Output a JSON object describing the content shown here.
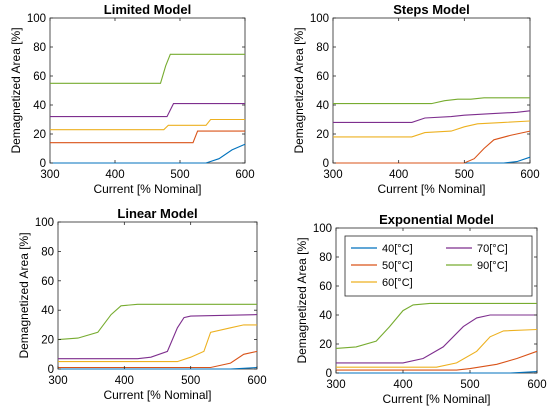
{
  "figure": {
    "colors": [
      "#0072BD",
      "#D95319",
      "#EDB120",
      "#7E2F8E",
      "#77AC30"
    ]
  },
  "chart_data": [
    {
      "type": "line",
      "title": "Limited Model",
      "xlabel": "Current [% Nominal]",
      "ylabel": "Demagnetized Area [%]",
      "xlim": [
        300,
        600
      ],
      "ylim": [
        0,
        100
      ],
      "xticks": [
        "300",
        "400",
        "500",
        "600"
      ],
      "yticks": [
        "0",
        "20",
        "40",
        "60",
        "80",
        "100"
      ],
      "grid": false,
      "series": [
        {
          "points": [
            [
              300,
              0
            ],
            [
              540,
              0
            ],
            [
              560,
              3
            ],
            [
              580,
              9
            ],
            [
              600,
              13
            ]
          ]
        },
        {
          "points": [
            [
              300,
              14
            ],
            [
              520,
              14
            ],
            [
              527,
              22
            ],
            [
              600,
              22
            ]
          ]
        },
        {
          "points": [
            [
              300,
              23
            ],
            [
              475,
              23
            ],
            [
              482,
              26
            ],
            [
              540,
              26
            ],
            [
              547,
              30
            ],
            [
              600,
              30
            ]
          ]
        },
        {
          "points": [
            [
              300,
              32
            ],
            [
              480,
              32
            ],
            [
              490,
              41
            ],
            [
              600,
              41
            ]
          ]
        },
        {
          "points": [
            [
              300,
              55
            ],
            [
              470,
              55
            ],
            [
              478,
              67
            ],
            [
              485,
              75
            ],
            [
              600,
              75
            ]
          ]
        }
      ]
    },
    {
      "type": "line",
      "title": "Steps Model",
      "xlabel": "Current [% Nominal]",
      "ylabel": "Demagnetized Area [%]",
      "xlim": [
        300,
        600
      ],
      "ylim": [
        0,
        100
      ],
      "xticks": [
        "300",
        "400",
        "500",
        "600"
      ],
      "yticks": [
        "0",
        "20",
        "40",
        "60",
        "80",
        "100"
      ],
      "grid": false,
      "series": [
        {
          "points": [
            [
              300,
              0
            ],
            [
              560,
              0
            ],
            [
              580,
              1
            ],
            [
              600,
              4
            ]
          ]
        },
        {
          "points": [
            [
              300,
              0
            ],
            [
              500,
              0
            ],
            [
              515,
              3
            ],
            [
              530,
              10
            ],
            [
              545,
              16
            ],
            [
              570,
              19
            ],
            [
              600,
              22
            ]
          ]
        },
        {
          "points": [
            [
              300,
              18
            ],
            [
              420,
              18
            ],
            [
              440,
              21
            ],
            [
              480,
              22
            ],
            [
              500,
              25
            ],
            [
              520,
              27
            ],
            [
              560,
              28
            ],
            [
              600,
              29
            ]
          ]
        },
        {
          "points": [
            [
              300,
              28
            ],
            [
              420,
              28
            ],
            [
              440,
              31
            ],
            [
              480,
              32
            ],
            [
              500,
              33
            ],
            [
              540,
              34
            ],
            [
              580,
              35
            ],
            [
              600,
              36
            ]
          ]
        },
        {
          "points": [
            [
              300,
              41
            ],
            [
              450,
              41
            ],
            [
              470,
              43
            ],
            [
              490,
              44
            ],
            [
              510,
              44
            ],
            [
              530,
              45
            ],
            [
              600,
              45
            ]
          ]
        }
      ]
    },
    {
      "type": "line",
      "title": "Linear Model",
      "xlabel": "Current [% Nominal]",
      "ylabel": "Demagnetized Area [%]",
      "xlim": [
        300,
        600
      ],
      "ylim": [
        0,
        100
      ],
      "xticks": [
        "300",
        "400",
        "500",
        "600"
      ],
      "yticks": [
        "0",
        "20",
        "40",
        "60",
        "80",
        "100"
      ],
      "grid": false,
      "series": [
        {
          "points": [
            [
              300,
              0
            ],
            [
              560,
              0
            ],
            [
              580,
              0.5
            ],
            [
              600,
              1
            ]
          ]
        },
        {
          "points": [
            [
              300,
              1
            ],
            [
              530,
              1
            ],
            [
              560,
              4
            ],
            [
              580,
              10
            ],
            [
              600,
              12
            ]
          ]
        },
        {
          "points": [
            [
              300,
              5
            ],
            [
              480,
              5
            ],
            [
              500,
              8
            ],
            [
              520,
              12
            ],
            [
              530,
              25
            ],
            [
              560,
              28
            ],
            [
              580,
              30
            ],
            [
              600,
              30
            ]
          ]
        },
        {
          "points": [
            [
              300,
              7
            ],
            [
              420,
              7
            ],
            [
              440,
              8
            ],
            [
              465,
              12
            ],
            [
              480,
              28
            ],
            [
              490,
              35
            ],
            [
              500,
              36
            ],
            [
              600,
              37
            ]
          ]
        },
        {
          "points": [
            [
              300,
              20
            ],
            [
              330,
              21
            ],
            [
              360,
              25
            ],
            [
              380,
              37
            ],
            [
              395,
              43
            ],
            [
              420,
              44
            ],
            [
              600,
              44
            ]
          ]
        }
      ]
    },
    {
      "type": "line",
      "title": "Exponential Model",
      "xlabel": "Current [% Nominal]",
      "ylabel": "Demagnetized Area [%]",
      "xlim": [
        300,
        600
      ],
      "ylim": [
        0,
        100
      ],
      "xticks": [
        "300",
        "400",
        "500",
        "600"
      ],
      "yticks": [
        "0",
        "20",
        "40",
        "60",
        "80",
        "100"
      ],
      "grid": false,
      "legend": "top",
      "series": [
        {
          "name": "40[°C]",
          "points": [
            [
              300,
              0
            ],
            [
              560,
              0
            ],
            [
              580,
              0.5
            ],
            [
              600,
              1
            ]
          ]
        },
        {
          "name": "50[°C]",
          "points": [
            [
              300,
              2
            ],
            [
              480,
              2
            ],
            [
              500,
              3
            ],
            [
              540,
              6
            ],
            [
              570,
              10
            ],
            [
              600,
              15
            ]
          ]
        },
        {
          "name": "60[°C]",
          "points": [
            [
              300,
              4
            ],
            [
              450,
              4
            ],
            [
              480,
              7
            ],
            [
              510,
              15
            ],
            [
              530,
              25
            ],
            [
              550,
              29
            ],
            [
              600,
              30
            ]
          ]
        },
        {
          "name": "70[°C]",
          "points": [
            [
              300,
              7
            ],
            [
              400,
              7
            ],
            [
              430,
              10
            ],
            [
              460,
              18
            ],
            [
              490,
              32
            ],
            [
              510,
              38
            ],
            [
              530,
              40
            ],
            [
              600,
              40
            ]
          ]
        },
        {
          "name": "90[°C]",
          "points": [
            [
              300,
              17
            ],
            [
              330,
              18
            ],
            [
              360,
              22
            ],
            [
              380,
              32
            ],
            [
              400,
              43
            ],
            [
              415,
              47
            ],
            [
              440,
              48
            ],
            [
              600,
              48
            ]
          ]
        }
      ]
    }
  ]
}
